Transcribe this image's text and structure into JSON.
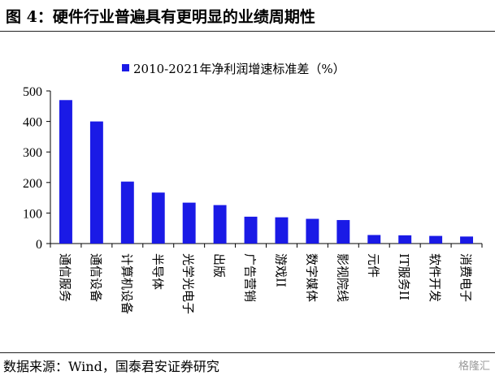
{
  "header": {
    "title": "图 4：硬件行业普遍具有更明显的业绩周期性"
  },
  "footer": {
    "source": "数据来源：Wind，国泰君安证券研究",
    "watermark": "格隆汇"
  },
  "colors": {
    "bar": "#1a1ae6",
    "axis": "#000000"
  },
  "chart_data": {
    "type": "bar",
    "title": "",
    "xlabel": "",
    "ylabel": "",
    "ylim": [
      0,
      500
    ],
    "yticks": [
      0,
      100,
      200,
      300,
      400,
      500
    ],
    "grid": false,
    "legend_position": "top-center",
    "categories": [
      "通信服务",
      "通信设备",
      "计算机设备",
      "半导体",
      "光学光电子",
      "出版",
      "广告营销",
      "游戏II",
      "数字媒体",
      "影视院线",
      "元件",
      "IT服务II",
      "软件开发",
      "消费电子"
    ],
    "series": [
      {
        "name": "2010-2021年净利润增速标准差（%）",
        "values": [
          470,
          400,
          203,
          167,
          134,
          126,
          88,
          86,
          81,
          77,
          28,
          27,
          25,
          23
        ]
      }
    ]
  }
}
